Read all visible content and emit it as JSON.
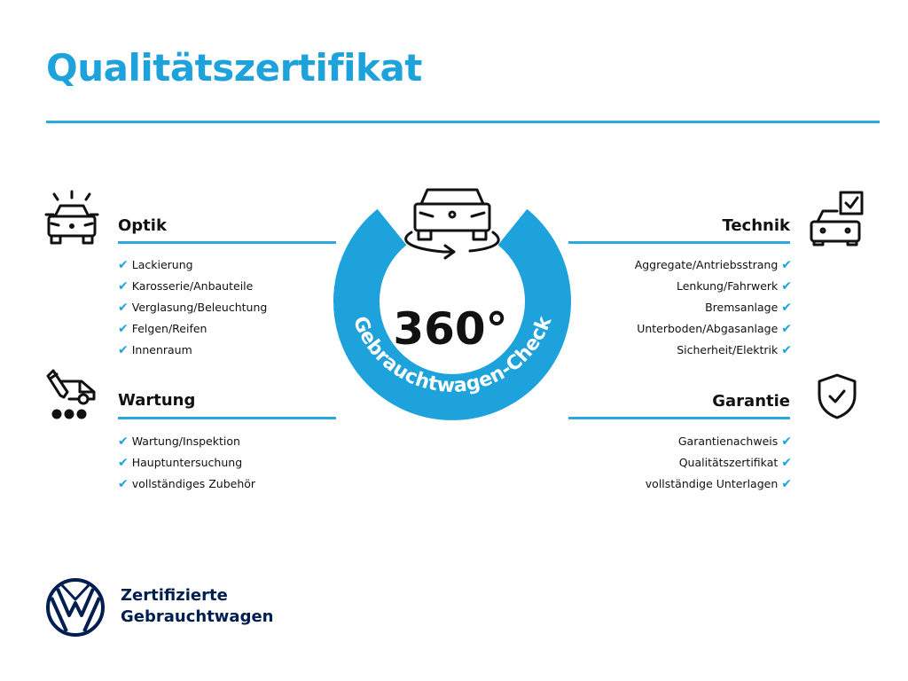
{
  "title": "Qualitätszertifikat",
  "colors": {
    "accent": "#1ea2dc",
    "brand": "#001e50"
  },
  "center": {
    "value": "360°",
    "arc_text": "Gebrauchtwagen-Check",
    "icon": "car-rotate-icon"
  },
  "sections": {
    "optik": {
      "heading": "Optik",
      "icon": "car-lights-icon",
      "items": [
        "Lackierung",
        "Karosserie/Anbauteile",
        "Verglasung/Beleuchtung",
        "Felgen/Reifen",
        "Innenraum"
      ]
    },
    "wartung": {
      "heading": "Wartung",
      "icon": "service-van-icon",
      "items": [
        "Wartung/Inspektion",
        "Hauptuntersuchung",
        "vollständiges Zubehör"
      ]
    },
    "technik": {
      "heading": "Technik",
      "icon": "car-checklist-icon",
      "items": [
        "Aggregate/Antriebsstrang",
        "Lenkung/Fahrwerk",
        "Bremsanlage",
        "Unterboden/Abgasanlage",
        "Sicherheit/Elektrik"
      ]
    },
    "garantie": {
      "heading": "Garantie",
      "icon": "shield-check-icon",
      "items": [
        "Garantienachweis",
        "Qualitätszertifikat",
        "vollständige Unterlagen"
      ]
    }
  },
  "check_glyph": "✔",
  "footer": {
    "line1": "Zertifizierte",
    "line2": "Gebrauchtwagen",
    "logo": "vw-logo"
  }
}
